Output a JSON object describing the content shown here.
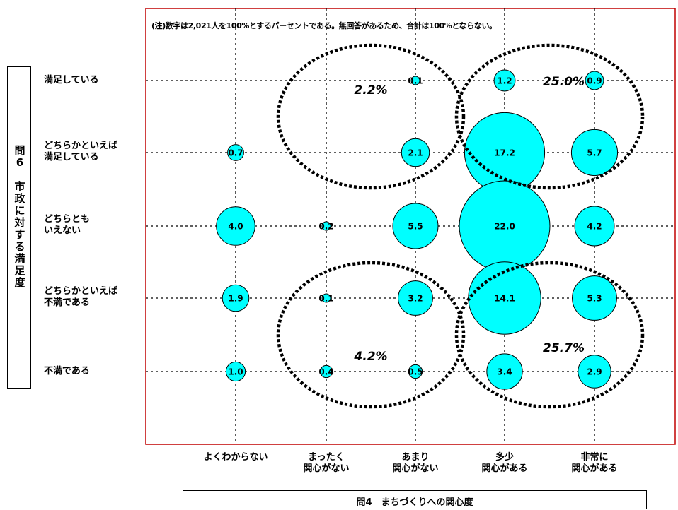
{
  "chart_data": {
    "type": "bubble",
    "note": "(注)数字は2,021人を100%とするパーセントである。無回答があるため、合計は100%とならない。",
    "xlabel": "問4　まちづくりへの関心度",
    "ylabel": "問6　市政に対する満足度",
    "x_categories": [
      {
        "line1": "よくわからない",
        "line2": ""
      },
      {
        "line1": "まったく",
        "line2": "関心がない"
      },
      {
        "line1": "あまり",
        "line2": "関心がない"
      },
      {
        "line1": "多少",
        "line2": "関心がある"
      },
      {
        "line1": "非常に",
        "line2": "関心がある"
      }
    ],
    "y_categories": [
      {
        "line1": "満足している",
        "line2": ""
      },
      {
        "line1": "どちらかといえば",
        "line2": "満足している"
      },
      {
        "line1": "どちらとも",
        "line2": "いえない"
      },
      {
        "line1": "どちらかといえば",
        "line2": "不満である"
      },
      {
        "line1": "不満である",
        "line2": ""
      }
    ],
    "values": [
      [
        null,
        null,
        0.1,
        1.2,
        0.9
      ],
      [
        0.7,
        null,
        2.1,
        17.2,
        5.7
      ],
      [
        4.0,
        0.2,
        5.5,
        22.0,
        4.2
      ],
      [
        1.9,
        0.1,
        3.2,
        14.1,
        5.3
      ],
      [
        1.0,
        0.4,
        0.5,
        3.4,
        2.9
      ]
    ],
    "groups": [
      {
        "label": "2.2%",
        "rows": [
          0,
          1
        ],
        "cols": [
          1,
          2
        ]
      },
      {
        "label": "25.0%",
        "rows": [
          0,
          1
        ],
        "cols": [
          3,
          4
        ]
      },
      {
        "label": "4.2%",
        "rows": [
          3,
          4
        ],
        "cols": [
          1,
          2
        ]
      },
      {
        "label": "25.7%",
        "rows": [
          3,
          4
        ],
        "cols": [
          3,
          4
        ]
      }
    ],
    "colors": {
      "bubble": "#00FFFF",
      "frame": "#C00000",
      "grid": "#000000"
    },
    "grid": true
  }
}
